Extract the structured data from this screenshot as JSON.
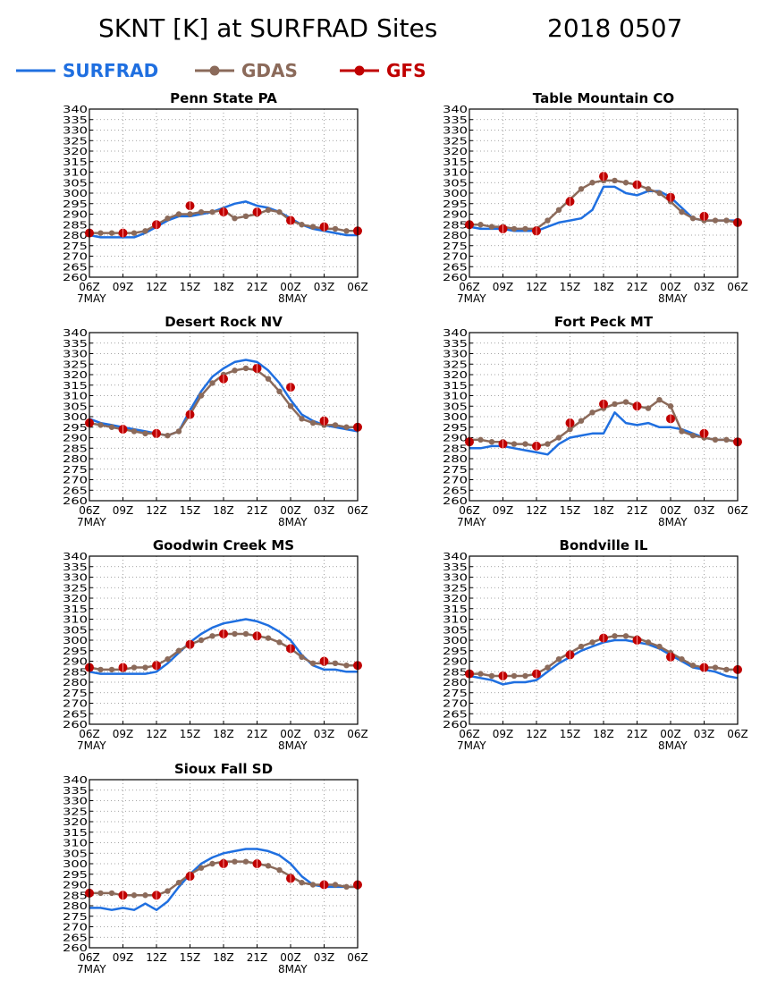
{
  "figure": {
    "title_left": "SKNT [K] at SURFRAD Sites",
    "title_right": "2018 0507"
  },
  "legend": [
    {
      "name": "SURFRAD",
      "color": "#1f6fe0",
      "marker": "none"
    },
    {
      "name": "GDAS",
      "color": "#8b6a5a",
      "marker": "dot"
    },
    {
      "name": "GFS",
      "color": "#c00000",
      "marker": "dot"
    }
  ],
  "axes": {
    "y_ticks": [
      "340",
      "335",
      "330",
      "325",
      "320",
      "315",
      "310",
      "305",
      "300",
      "295",
      "290",
      "285",
      "280",
      "275",
      "270",
      "265",
      "260"
    ],
    "ylim": [
      260,
      340
    ],
    "x_ticks": [
      "06Z",
      "09Z",
      "12Z",
      "15Z",
      "18Z",
      "21Z",
      "00Z",
      "03Z",
      "06Z"
    ],
    "x_dates": [
      "7MAY",
      "8MAY"
    ],
    "grid": true
  },
  "chart_data": [
    {
      "type": "line",
      "title": "Penn State PA",
      "x": [
        "06Z",
        "09Z",
        "12Z",
        "15Z",
        "18Z",
        "21Z",
        "00Z",
        "03Z",
        "06Z"
      ],
      "series": [
        {
          "name": "SURFRAD",
          "x": [
            0,
            1,
            2,
            3,
            4,
            5,
            6,
            7,
            8,
            9,
            10,
            11,
            12,
            13,
            14,
            15,
            16,
            17,
            18,
            19,
            20,
            21,
            22,
            23,
            24
          ],
          "y": [
            280,
            279,
            279,
            279,
            279,
            281,
            284,
            287,
            289,
            289,
            290,
            291,
            293,
            295,
            296,
            294,
            293,
            291,
            288,
            285,
            283,
            282,
            281,
            280,
            280
          ]
        },
        {
          "name": "GDAS",
          "x": [
            0,
            1,
            2,
            3,
            4,
            5,
            6,
            7,
            8,
            9,
            10,
            11,
            12,
            13,
            14,
            15,
            16,
            17,
            18,
            19,
            20,
            21,
            22,
            23,
            24
          ],
          "y": [
            281,
            281,
            281,
            281,
            281,
            282,
            285,
            288,
            290,
            290,
            291,
            291,
            292,
            288,
            289,
            290,
            292,
            291,
            287,
            285,
            284,
            283,
            283,
            282,
            282
          ]
        },
        {
          "name": "GFS",
          "x": [
            0,
            3,
            6,
            9,
            12,
            15,
            18,
            21,
            24
          ],
          "y": [
            281,
            281,
            285,
            294,
            291,
            291,
            287,
            284,
            282
          ]
        }
      ]
    },
    {
      "type": "line",
      "title": "Table Mountain CO",
      "x": [
        "06Z",
        "09Z",
        "12Z",
        "15Z",
        "18Z",
        "21Z",
        "00Z",
        "03Z",
        "06Z"
      ],
      "series": [
        {
          "name": "SURFRAD",
          "x": [
            0,
            1,
            2,
            3,
            4,
            5,
            6,
            7,
            8,
            9,
            10,
            11,
            12,
            13,
            14,
            15,
            16,
            17,
            18,
            19,
            20,
            21,
            22,
            23,
            24
          ],
          "y": [
            284,
            283,
            283,
            283,
            282,
            282,
            282,
            284,
            286,
            287,
            288,
            292,
            303,
            303,
            300,
            299,
            301,
            301,
            298,
            293,
            288,
            287,
            287,
            287,
            287
          ]
        },
        {
          "name": "GDAS",
          "x": [
            0,
            1,
            2,
            3,
            4,
            5,
            6,
            7,
            8,
            9,
            10,
            11,
            12,
            13,
            14,
            15,
            16,
            17,
            18,
            19,
            20,
            21,
            22,
            23,
            24
          ],
          "y": [
            285,
            285,
            284,
            284,
            283,
            283,
            283,
            287,
            292,
            297,
            302,
            305,
            306,
            306,
            305,
            304,
            302,
            300,
            296,
            291,
            288,
            287,
            287,
            287,
            286
          ]
        },
        {
          "name": "GFS",
          "x": [
            0,
            3,
            6,
            9,
            12,
            15,
            18,
            21,
            24
          ],
          "y": [
            285,
            283,
            282,
            296,
            308,
            304,
            298,
            289,
            286
          ]
        }
      ]
    },
    {
      "type": "line",
      "title": "Desert Rock NV",
      "x": [
        "06Z",
        "09Z",
        "12Z",
        "15Z",
        "18Z",
        "21Z",
        "00Z",
        "03Z",
        "06Z"
      ],
      "series": [
        {
          "name": "SURFRAD",
          "x": [
            0,
            1,
            2,
            3,
            4,
            5,
            6,
            7,
            8,
            9,
            10,
            11,
            12,
            13,
            14,
            15,
            16,
            17,
            18,
            19,
            20,
            21,
            22,
            23,
            24
          ],
          "y": [
            299,
            297,
            296,
            295,
            294,
            293,
            292,
            291,
            293,
            303,
            312,
            319,
            323,
            326,
            327,
            326,
            322,
            316,
            308,
            301,
            298,
            296,
            295,
            294,
            293
          ]
        },
        {
          "name": "GDAS",
          "x": [
            0,
            1,
            2,
            3,
            4,
            5,
            6,
            7,
            8,
            9,
            10,
            11,
            12,
            13,
            14,
            15,
            16,
            17,
            18,
            19,
            20,
            21,
            22,
            23,
            24
          ],
          "y": [
            297,
            296,
            295,
            294,
            293,
            292,
            292,
            291,
            293,
            301,
            310,
            316,
            320,
            322,
            323,
            322,
            318,
            312,
            305,
            299,
            297,
            296,
            296,
            295,
            295
          ]
        },
        {
          "name": "GFS",
          "x": [
            0,
            3,
            6,
            9,
            12,
            15,
            18,
            21,
            24
          ],
          "y": [
            297,
            294,
            292,
            301,
            318,
            323,
            314,
            298,
            295
          ]
        }
      ]
    },
    {
      "type": "line",
      "title": "Fort Peck MT",
      "x": [
        "06Z",
        "09Z",
        "12Z",
        "15Z",
        "18Z",
        "21Z",
        "00Z",
        "03Z",
        "06Z"
      ],
      "series": [
        {
          "name": "SURFRAD",
          "x": [
            0,
            1,
            2,
            3,
            4,
            5,
            6,
            7,
            8,
            9,
            10,
            11,
            12,
            13,
            14,
            15,
            16,
            17,
            18,
            19,
            20,
            21,
            22,
            23,
            24
          ],
          "y": [
            285,
            285,
            286,
            286,
            285,
            284,
            283,
            282,
            287,
            290,
            291,
            292,
            292,
            302,
            297,
            296,
            297,
            295,
            295,
            294,
            292,
            290,
            289,
            289,
            288
          ]
        },
        {
          "name": "GDAS",
          "x": [
            0,
            1,
            2,
            3,
            4,
            5,
            6,
            7,
            8,
            9,
            10,
            11,
            12,
            13,
            14,
            15,
            16,
            17,
            18,
            19,
            20,
            21,
            22,
            23,
            24
          ],
          "y": [
            289,
            289,
            288,
            288,
            287,
            287,
            286,
            287,
            290,
            294,
            298,
            302,
            304,
            306,
            307,
            305,
            304,
            308,
            305,
            293,
            291,
            290,
            289,
            289,
            288
          ]
        },
        {
          "name": "GFS",
          "x": [
            0,
            3,
            6,
            9,
            12,
            15,
            18,
            21,
            24
          ],
          "y": [
            288,
            287,
            286,
            297,
            306,
            305,
            299,
            292,
            288
          ]
        }
      ]
    },
    {
      "type": "line",
      "title": "Goodwin Creek MS",
      "x": [
        "06Z",
        "09Z",
        "12Z",
        "15Z",
        "18Z",
        "21Z",
        "00Z",
        "03Z",
        "06Z"
      ],
      "series": [
        {
          "name": "SURFRAD",
          "x": [
            0,
            1,
            2,
            3,
            4,
            5,
            6,
            7,
            8,
            9,
            10,
            11,
            12,
            13,
            14,
            15,
            16,
            17,
            18,
            19,
            20,
            21,
            22,
            23,
            24
          ],
          "y": [
            285,
            284,
            284,
            284,
            284,
            284,
            285,
            289,
            294,
            299,
            303,
            306,
            308,
            309,
            310,
            309,
            307,
            304,
            300,
            293,
            288,
            286,
            286,
            285,
            285
          ]
        },
        {
          "name": "GDAS",
          "x": [
            0,
            1,
            2,
            3,
            4,
            5,
            6,
            7,
            8,
            9,
            10,
            11,
            12,
            13,
            14,
            15,
            16,
            17,
            18,
            19,
            20,
            21,
            22,
            23,
            24
          ],
          "y": [
            287,
            286,
            286,
            286,
            287,
            287,
            288,
            291,
            295,
            298,
            300,
            302,
            303,
            303,
            303,
            302,
            301,
            299,
            296,
            292,
            289,
            289,
            289,
            288,
            288
          ]
        },
        {
          "name": "GFS",
          "x": [
            0,
            3,
            6,
            9,
            12,
            15,
            18,
            21,
            24
          ],
          "y": [
            287,
            287,
            288,
            298,
            303,
            302,
            296,
            290,
            288
          ]
        }
      ]
    },
    {
      "type": "line",
      "title": "Bondville IL",
      "x": [
        "06Z",
        "09Z",
        "12Z",
        "15Z",
        "18Z",
        "21Z",
        "00Z",
        "03Z",
        "06Z"
      ],
      "series": [
        {
          "name": "SURFRAD",
          "x": [
            0,
            1,
            2,
            3,
            4,
            5,
            6,
            7,
            8,
            9,
            10,
            11,
            12,
            13,
            14,
            15,
            16,
            17,
            18,
            19,
            20,
            21,
            22,
            23,
            24
          ],
          "y": [
            283,
            282,
            281,
            279,
            280,
            280,
            281,
            285,
            289,
            292,
            295,
            297,
            299,
            300,
            300,
            299,
            298,
            296,
            293,
            290,
            287,
            286,
            285,
            283,
            282
          ]
        },
        {
          "name": "GDAS",
          "x": [
            0,
            1,
            2,
            3,
            4,
            5,
            6,
            7,
            8,
            9,
            10,
            11,
            12,
            13,
            14,
            15,
            16,
            17,
            18,
            19,
            20,
            21,
            22,
            23,
            24
          ],
          "y": [
            284,
            284,
            283,
            283,
            283,
            283,
            284,
            287,
            291,
            294,
            297,
            299,
            301,
            302,
            302,
            301,
            299,
            297,
            294,
            291,
            288,
            287,
            287,
            286,
            286
          ]
        },
        {
          "name": "GFS",
          "x": [
            0,
            3,
            6,
            9,
            12,
            15,
            18,
            21,
            24
          ],
          "y": [
            284,
            283,
            284,
            293,
            301,
            300,
            292,
            287,
            286
          ]
        }
      ]
    },
    {
      "type": "line",
      "title": "Sioux Fall SD",
      "x": [
        "06Z",
        "09Z",
        "12Z",
        "15Z",
        "18Z",
        "21Z",
        "00Z",
        "03Z",
        "06Z"
      ],
      "series": [
        {
          "name": "SURFRAD",
          "x": [
            0,
            1,
            2,
            3,
            4,
            5,
            6,
            7,
            8,
            9,
            10,
            11,
            12,
            13,
            14,
            15,
            16,
            17,
            18,
            19,
            20,
            21,
            22,
            23,
            24
          ],
          "y": [
            279,
            279,
            278,
            279,
            278,
            281,
            278,
            282,
            289,
            295,
            300,
            303,
            305,
            306,
            307,
            307,
            306,
            304,
            300,
            294,
            290,
            289,
            289,
            289,
            289
          ]
        },
        {
          "name": "GDAS",
          "x": [
            0,
            1,
            2,
            3,
            4,
            5,
            6,
            7,
            8,
            9,
            10,
            11,
            12,
            13,
            14,
            15,
            16,
            17,
            18,
            19,
            20,
            21,
            22,
            23,
            24
          ],
          "y": [
            286,
            286,
            286,
            285,
            285,
            285,
            285,
            287,
            291,
            295,
            298,
            300,
            301,
            301,
            301,
            300,
            299,
            297,
            294,
            291,
            290,
            290,
            290,
            289,
            289
          ]
        },
        {
          "name": "GFS",
          "x": [
            0,
            3,
            6,
            9,
            12,
            15,
            18,
            21,
            24
          ],
          "y": [
            286,
            285,
            285,
            294,
            300,
            300,
            293,
            290,
            290
          ]
        }
      ]
    }
  ]
}
